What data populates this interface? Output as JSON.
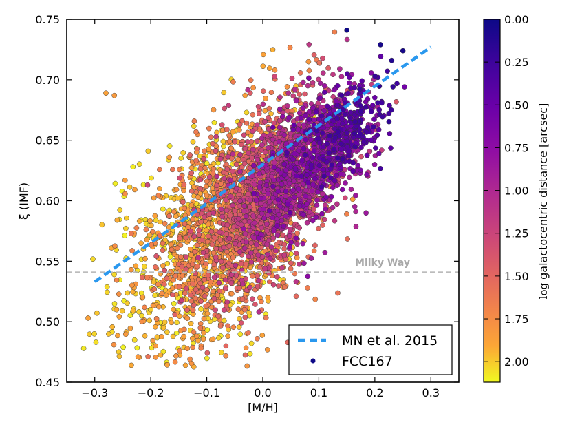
{
  "chart_data": {
    "type": "scatter",
    "xlabel": "[M/H]",
    "ylabel": "ξ (IMF)",
    "xlim": [
      -0.35,
      0.35
    ],
    "ylim": [
      0.45,
      0.75
    ],
    "xticks": [
      -0.3,
      -0.2,
      -0.1,
      0.0,
      0.1,
      0.2,
      0.3
    ],
    "xtick_labels": [
      "−0.3",
      "−0.2",
      "−0.1",
      "0.0",
      "0.1",
      "0.2",
      "0.3"
    ],
    "yticks": [
      0.45,
      0.5,
      0.55,
      0.6,
      0.65,
      0.7,
      0.75
    ],
    "ytick_labels": [
      "0.45",
      "0.50",
      "0.55",
      "0.60",
      "0.65",
      "0.70",
      "0.75"
    ],
    "reference_line": {
      "label": "Milky Way",
      "y": 0.541,
      "color": "#b0b0b0"
    },
    "fit_line": {
      "label": "MN et al. 2015",
      "x": [
        -0.3,
        0.3
      ],
      "y": [
        0.533,
        0.727
      ],
      "color": "#2a98ee"
    },
    "series": [
      {
        "name": "FCC167",
        "description": "~4000 spaxel points, colored by log galactocentric distance",
        "sample_points": [
          {
            "x": 0.15,
            "y": 0.741,
            "c": 0.0
          },
          {
            "x": 0.21,
            "y": 0.729,
            "c": 0.05
          },
          {
            "x": 0.25,
            "y": 0.724,
            "c": 0.05
          },
          {
            "x": 0.23,
            "y": 0.716,
            "c": 0.1
          },
          {
            "x": 0.2,
            "y": 0.703,
            "c": 0.2
          },
          {
            "x": 0.1,
            "y": 0.66,
            "c": 0.55
          },
          {
            "x": 0.0,
            "y": 0.63,
            "c": 0.9
          },
          {
            "x": -0.05,
            "y": 0.6,
            "c": 1.2
          },
          {
            "x": -0.28,
            "y": 0.689,
            "c": 1.85
          },
          {
            "x": -0.265,
            "y": 0.687,
            "c": 1.8
          },
          {
            "x": -0.26,
            "y": 0.584,
            "c": 1.9
          },
          {
            "x": -0.27,
            "y": 0.561,
            "c": 1.9
          },
          {
            "x": -0.2,
            "y": 0.51,
            "c": 2.0
          },
          {
            "x": -0.13,
            "y": 0.469,
            "c": 1.7
          },
          {
            "x": -0.11,
            "y": 0.48,
            "c": 1.7
          },
          {
            "x": -0.01,
            "y": 0.486,
            "c": 1.6
          },
          {
            "x": 0.08,
            "y": 0.528,
            "c": 1.6
          }
        ],
        "color_scale": "plasma (reversed: 0.00 dark blue → 2.10 yellow)"
      }
    ],
    "colorbar": {
      "label": "log galactocentric distance [arcsec]",
      "label_log": "log",
      "label_rest": "galactocentric distance [arcsec]",
      "ticks": [
        "0.00",
        "0.25",
        "0.50",
        "0.75",
        "1.00",
        "1.25",
        "1.50",
        "1.75",
        "2.00"
      ],
      "range": [
        0.0,
        2.12
      ]
    },
    "legend": {
      "position": "lower-right",
      "entries": [
        "MN et al. 2015",
        "FCC167"
      ]
    }
  }
}
